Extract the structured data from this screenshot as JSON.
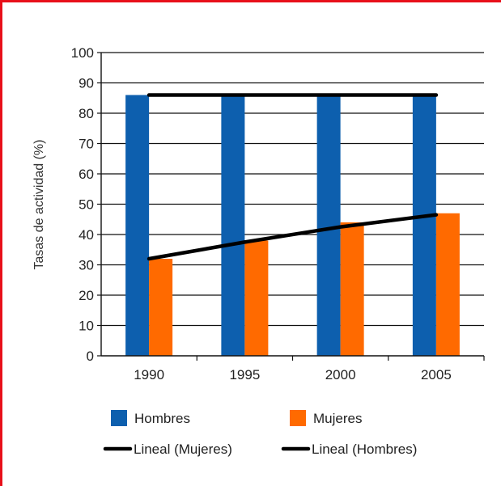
{
  "chart_data": {
    "type": "bar",
    "categories": [
      "1990",
      "1995",
      "2000",
      "2005"
    ],
    "series": [
      {
        "name": "Hombres",
        "color": "#0d5fae",
        "values": [
          86,
          86,
          86,
          86
        ]
      },
      {
        "name": "Mujeres",
        "color": "#ff6a00",
        "values": [
          32,
          38,
          44,
          47
        ]
      }
    ],
    "trendlines": [
      {
        "name": "Lineal (Mujeres)",
        "color": "#000000",
        "values": [
          32,
          37.5,
          42.5,
          46.5
        ]
      },
      {
        "name": "Lineal (Hombres)",
        "color": "#000000",
        "values": [
          86,
          86,
          86,
          86
        ]
      }
    ],
    "title": "",
    "xlabel": "",
    "ylabel": "Tasas de actividad (%)",
    "ylim": [
      0,
      100
    ],
    "yticks": [
      "0",
      "10",
      "20",
      "30",
      "40",
      "50",
      "60",
      "70",
      "80",
      "90",
      "100"
    ],
    "grid": true,
    "legend_position": "bottom"
  }
}
